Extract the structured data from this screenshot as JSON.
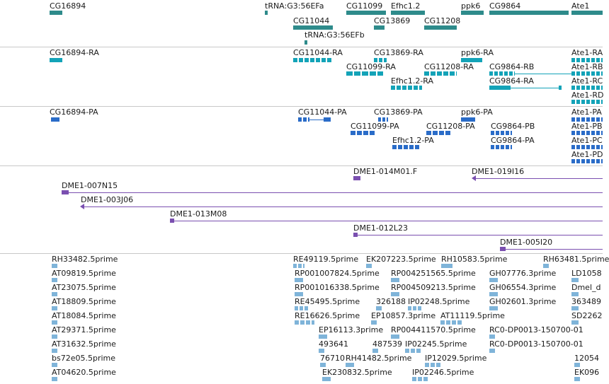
{
  "tracks": {
    "genes": {
      "labels": [
        "CG16894",
        "tRNA:G3:56EFa",
        "CG11099",
        "Efhc1.2",
        "ppk6",
        "CG9864",
        "Ate1",
        "CG11044",
        "CG13869",
        "CG11208",
        "tRNA:G3:56EFb"
      ],
      "color": "#2e8b8b"
    },
    "transcripts": {
      "labels": [
        "CG16894-RA",
        "CG11044-RA",
        "CG13869-RA",
        "ppk6-RA",
        "Ate1-RA",
        "CG11099-RA",
        "CG11208-RA",
        "CG9864-RB",
        "Ate1-RB",
        "Efhc1.2-RA",
        "CG9864-RA",
        "Ate1-RC",
        "Ate1-RD"
      ],
      "color": "#13a3b8"
    },
    "proteins": {
      "labels": [
        "CG16894-PA",
        "CG11044-PA",
        "CG13869-PA",
        "ppk6-PA",
        "Ate1-PA",
        "CG11099-PA",
        "CG11208-PA",
        "CG9864-PB",
        "Ate1-PB",
        "Efhc1.2-PA",
        "CG9864-PA",
        "Ate1-PC",
        "Ate1-PD"
      ],
      "color": "#2a6cc8"
    },
    "clones": {
      "labels": [
        "DME1-014M01.F",
        "DME1-019I16",
        "DME1-007N15",
        "DME1-003J06",
        "DME1-013M08",
        "DME1-012L23",
        "DME1-005I20"
      ],
      "color": "#7a4fb0"
    },
    "ests": {
      "labels": [
        "RH33482.5prime",
        "RE49119.5prime",
        "EK207223.5prime",
        "RH10583.5prime",
        "RH63481.5prime",
        "AT09819.5prime",
        "RP001007824.5prime",
        "RP004251565.5prime",
        "GH07776.3prime",
        "LD1058",
        "AT23075.5prime",
        "RP001016338.5prime",
        "RP004509213.5prime",
        "GH06554.3prime",
        "Dmel_d",
        "AT18809.5prime",
        "RE45495.5prime",
        "326188",
        "IP02248.5prime",
        "GH02601.3prime",
        "363489",
        "AT18084.5prime",
        "RE16626.5prime",
        "EP10857.3prime",
        "AT11119.5prime",
        "SD2262",
        "AT29371.5prime",
        "EP16113.3prime",
        "RP004411570.5prime",
        "RC0-DP0013-150700-01",
        "AT31632.5prime",
        "493641",
        "487539",
        "IP02245.5prime",
        "RC0-DP0013-150700-01",
        "bs72e05.5prime",
        "76710",
        "RH41482.5prime",
        "IP12029.5prime",
        "12054",
        "AT04620.5prime",
        "EK230832.5prime",
        "IP02246.5prime",
        "EK096"
      ],
      "color": "#7fb4d9"
    }
  }
}
